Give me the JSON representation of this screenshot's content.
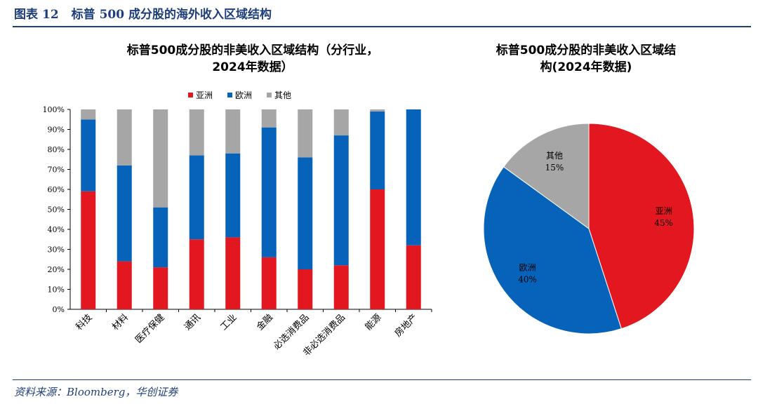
{
  "figure": {
    "label": "图表",
    "number": "12",
    "title": "标普 500 成分股的海外收入区域结构"
  },
  "footer": "资料来源：Bloomberg，华创证券",
  "colors": {
    "asia": "#e3171f",
    "europe": "#0763b9",
    "other": "#a6a6a6",
    "accent": "#1f3f7a"
  },
  "chart_data": [
    {
      "type": "bar",
      "stacked": true,
      "title_lines": [
        "标普500成分股的非美收入区域结构（分行业，",
        "2024年数据）"
      ],
      "categories": [
        "科技",
        "材料",
        "医疗保健",
        "通讯",
        "工业",
        "金融",
        "必选消费品",
        "非必选消费品",
        "能源",
        "房地产"
      ],
      "series": [
        {
          "name": "亚洲",
          "color": "#e3171f",
          "values": [
            59,
            24,
            21,
            35,
            36,
            26,
            20,
            22,
            60,
            32
          ]
        },
        {
          "name": "欧洲",
          "color": "#0763b9",
          "values": [
            36,
            48,
            30,
            42,
            42,
            65,
            56,
            65,
            39,
            68
          ]
        },
        {
          "name": "其他",
          "color": "#a6a6a6",
          "values": [
            5,
            28,
            49,
            23,
            22,
            9,
            24,
            13,
            1,
            0
          ]
        }
      ],
      "ylim": [
        0,
        100
      ],
      "yticks": [
        "0%",
        "10%",
        "20%",
        "30%",
        "40%",
        "50%",
        "60%",
        "70%",
        "80%",
        "90%",
        "100%"
      ],
      "legend_position": "top",
      "grid": false
    },
    {
      "type": "pie",
      "title_lines": [
        "标普500成分股的非美收入区域结",
        "构(2024年数据)"
      ],
      "slices": [
        {
          "name": "亚洲",
          "value": 45,
          "label": "45%",
          "color": "#e3171f"
        },
        {
          "name": "欧洲",
          "value": 40,
          "label": "40%",
          "color": "#0763b9"
        },
        {
          "name": "其他",
          "value": 15,
          "label": "15%",
          "color": "#a6a6a6"
        }
      ]
    }
  ]
}
